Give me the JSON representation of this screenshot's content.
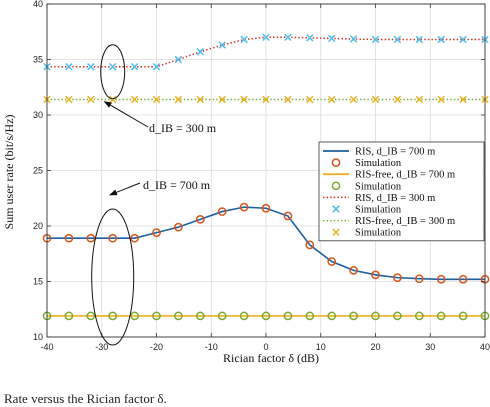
{
  "chart_data": {
    "type": "line",
    "xlabel": "Rician factor δ (dB)",
    "ylabel": "Sum user rate (bit/s/Hz)",
    "xlim": [
      -40,
      40
    ],
    "ylim": [
      10,
      40
    ],
    "xticks": [
      -40,
      -30,
      -20,
      -10,
      0,
      10,
      20,
      30,
      40
    ],
    "yticks": [
      10,
      15,
      20,
      25,
      30,
      35,
      40
    ],
    "grid": true,
    "legend_position": "right-middle",
    "x": [
      -40,
      -36,
      -32,
      -28,
      -24,
      -20,
      -16,
      -12,
      -8,
      -4,
      0,
      4,
      8,
      12,
      16,
      20,
      24,
      28,
      32,
      36,
      40
    ],
    "series": [
      {
        "name": "RIS, d_IB = 700 m",
        "style": "solid-line",
        "color": "#1f5f9f",
        "values": [
          18.9,
          18.9,
          18.9,
          18.9,
          18.9,
          19.4,
          19.9,
          20.6,
          21.3,
          21.7,
          21.6,
          20.9,
          18.3,
          16.8,
          16.0,
          15.6,
          15.35,
          15.25,
          15.2,
          15.2,
          15.2
        ]
      },
      {
        "name": "Simulation",
        "style": "circle-marker",
        "color": "#d95319",
        "values": [
          18.9,
          18.9,
          18.9,
          18.9,
          18.9,
          19.4,
          19.9,
          20.6,
          21.3,
          21.7,
          21.6,
          20.9,
          18.3,
          16.8,
          16.0,
          15.6,
          15.35,
          15.25,
          15.2,
          15.2,
          15.2
        ]
      },
      {
        "name": "RIS-free, d_IB = 700 m",
        "style": "solid-line",
        "color": "#edb120",
        "values": [
          11.9,
          11.9,
          11.9,
          11.9,
          11.9,
          11.9,
          11.9,
          11.9,
          11.9,
          11.9,
          11.9,
          11.9,
          11.9,
          11.9,
          11.9,
          11.9,
          11.9,
          11.9,
          11.9,
          11.9,
          11.9
        ]
      },
      {
        "name": "Simulation",
        "style": "circle-marker",
        "color": "#77ac30",
        "values": [
          11.9,
          11.9,
          11.9,
          11.9,
          11.9,
          11.9,
          11.9,
          11.9,
          11.9,
          11.9,
          11.9,
          11.9,
          11.9,
          11.9,
          11.9,
          11.9,
          11.9,
          11.9,
          11.9,
          11.9,
          11.9
        ]
      },
      {
        "name": "RIS, d_IB = 300 m",
        "style": "dotted-line",
        "color": "#d9281e",
        "values": [
          34.35,
          34.35,
          34.35,
          34.35,
          34.35,
          34.35,
          35.0,
          35.7,
          36.3,
          36.8,
          37.0,
          37.0,
          36.95,
          36.9,
          36.85,
          36.8,
          36.8,
          36.8,
          36.8,
          36.8,
          36.8
        ]
      },
      {
        "name": "Simulation",
        "style": "x-marker",
        "color": "#4dbeee",
        "values": [
          34.35,
          34.35,
          34.35,
          34.35,
          34.35,
          34.35,
          35.0,
          35.7,
          36.3,
          36.8,
          37.0,
          37.0,
          36.95,
          36.9,
          36.85,
          36.8,
          36.8,
          36.8,
          36.8,
          36.8,
          36.8
        ]
      },
      {
        "name": "RIS-free, d_IB = 300 m",
        "style": "dotted-line",
        "color": "#77ac30",
        "values": [
          31.4,
          31.4,
          31.4,
          31.4,
          31.4,
          31.4,
          31.4,
          31.4,
          31.4,
          31.4,
          31.4,
          31.4,
          31.4,
          31.4,
          31.4,
          31.4,
          31.4,
          31.4,
          31.4,
          31.4,
          31.4
        ]
      },
      {
        "name": "Simulation",
        "style": "x-marker",
        "color": "#edb120",
        "values": [
          31.4,
          31.4,
          31.4,
          31.4,
          31.4,
          31.4,
          31.4,
          31.4,
          31.4,
          31.4,
          31.4,
          31.4,
          31.4,
          31.4,
          31.4,
          31.4,
          31.4,
          31.4,
          31.4,
          31.4,
          31.4
        ]
      }
    ],
    "annotations": [
      {
        "text": "d_IB = 300 m",
        "target_x": -28,
        "target_y": 33.0
      },
      {
        "text": "d_IB = 700 m",
        "target_x": -28,
        "target_y": 15.5
      }
    ]
  },
  "caption": "Rate versus the Rician factor δ."
}
